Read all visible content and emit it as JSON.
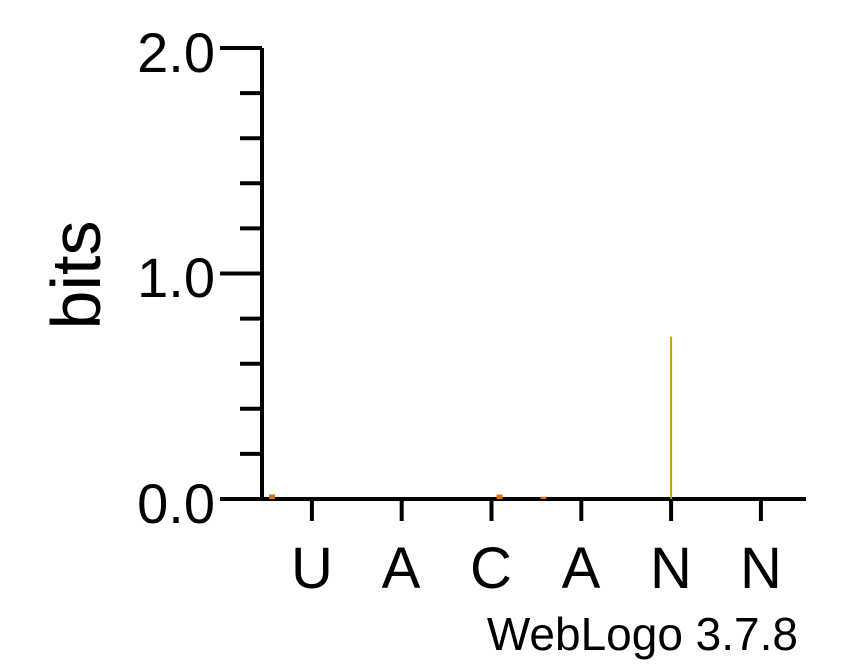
{
  "chart_data": {
    "type": "bar",
    "title": "",
    "xlabel": "",
    "ylabel": "bits",
    "ylim": [
      0,
      2.0
    ],
    "yticks": [
      "0.0",
      "1.0",
      "2.0"
    ],
    "categories": [
      "U",
      "A",
      "C",
      "A",
      "N",
      "N"
    ],
    "series": [
      {
        "values": [
          0.02,
          0.0,
          0.02,
          0.01,
          0.72,
          0.0
        ]
      }
    ],
    "colors": {
      "axis": "#000000",
      "glyph": "#c8a000",
      "glyph_alt": "#e07000"
    },
    "grid": false,
    "legend": "none",
    "credit": "WebLogo 3.7.8"
  }
}
